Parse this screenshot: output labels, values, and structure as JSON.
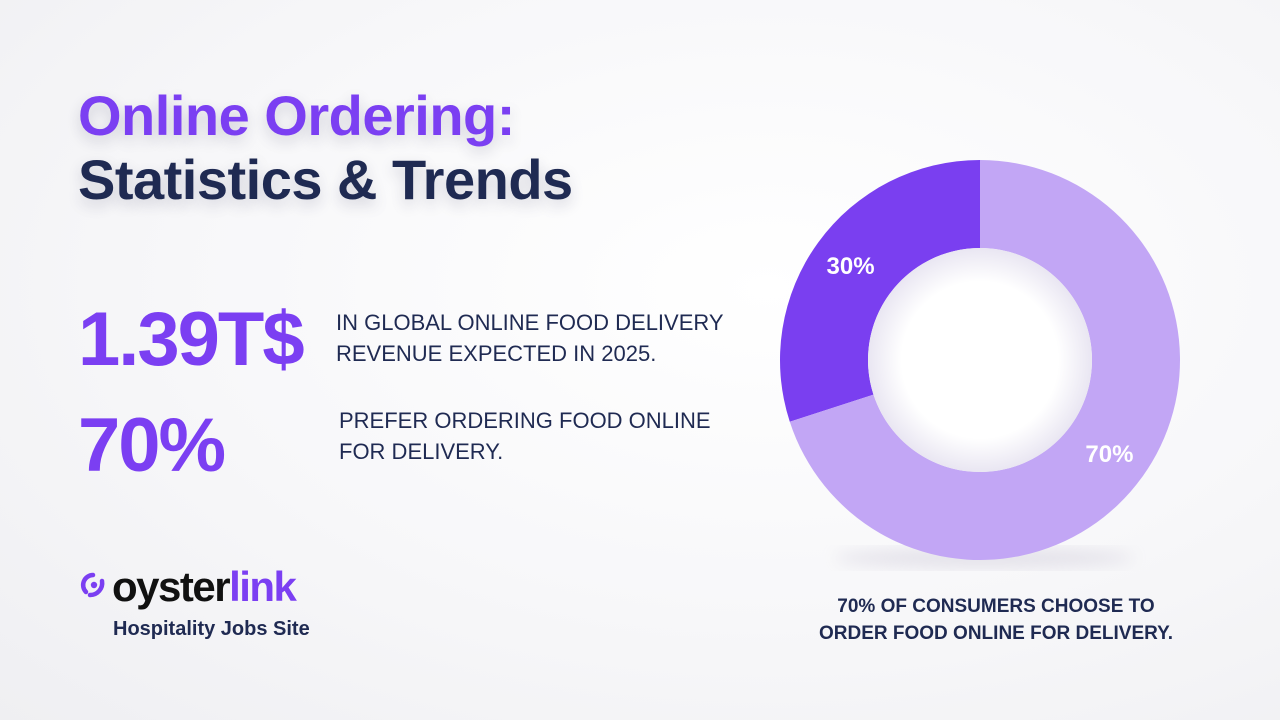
{
  "title": {
    "line1": "Online Ordering:",
    "line2": "Statistics & Trends"
  },
  "stats": [
    {
      "value": "1.39T$",
      "desc_line1": "IN GLOBAL ONLINE FOOD DELIVERY",
      "desc_line2": "REVENUE EXPECTED IN 2025."
    },
    {
      "value": "70%",
      "desc_line1": "PREFER ORDERING FOOD ONLINE",
      "desc_line2": "FOR DELIVERY."
    }
  ],
  "brand": {
    "word_part1": "oyster",
    "word_part2": "link",
    "tagline": "Hospitality Jobs Site",
    "accent_color": "#7b3ff2",
    "dark_color": "#1f2a52"
  },
  "chart_data": {
    "type": "pie",
    "donut": true,
    "slices": [
      {
        "label": "30%",
        "value": 30,
        "color": "#7a3ff0"
      },
      {
        "label": "70%",
        "value": 70,
        "color": "#c2a6f5"
      }
    ],
    "caption_line1": "70% OF CONSUMERS CHOOSE TO",
    "caption_line2": "ORDER FOOD ONLINE FOR DELIVERY."
  }
}
